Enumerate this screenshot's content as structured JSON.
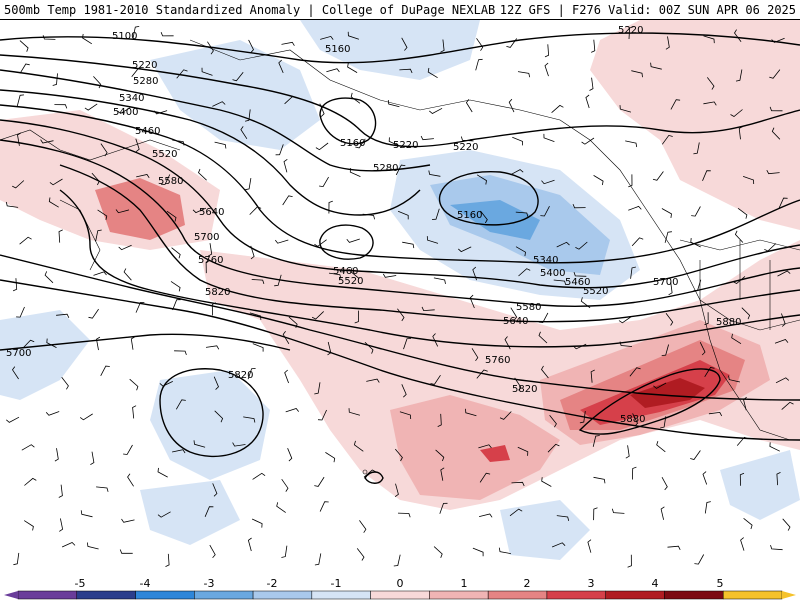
{
  "header": {
    "left": "500mb Temp 1981-2010 Standardized Anomaly | College of DuPage NEXLAB",
    "right": "12Z GFS | F276 Valid: 00Z SUN APR 06 2025"
  },
  "colors": {
    "cold": [
      "#6a3d9a",
      "#2b3e8c",
      "#2e86d9",
      "#6aa8e0",
      "#a9c9ec",
      "#d6e4f5"
    ],
    "warm": [
      "#f7d9d9",
      "#f0b4b4",
      "#e58484",
      "#d6404a",
      "#b01c22",
      "#7c0a12",
      "#f5c22b"
    ],
    "contour": "#000000",
    "barb": "#000000",
    "coast": "#000000"
  },
  "contour_labels": [
    {
      "text": "5100"
    },
    {
      "text": "5160"
    },
    {
      "text": "5220"
    },
    {
      "text": "5280"
    },
    {
      "text": "5340"
    },
    {
      "text": "5400"
    },
    {
      "text": "5460"
    },
    {
      "text": "5520"
    },
    {
      "text": "5580"
    },
    {
      "text": "5640"
    },
    {
      "text": "5700"
    },
    {
      "text": "5760"
    },
    {
      "text": "5820"
    },
    {
      "text": "5160"
    },
    {
      "text": "5220"
    },
    {
      "text": "5220"
    },
    {
      "text": "5280"
    },
    {
      "text": "5160"
    },
    {
      "text": "5340"
    },
    {
      "text": "5400"
    },
    {
      "text": "5460"
    },
    {
      "text": "5520"
    },
    {
      "text": "5460"
    },
    {
      "text": "5520"
    },
    {
      "text": "5580"
    },
    {
      "text": "5640"
    },
    {
      "text": "5760"
    },
    {
      "text": "5820"
    },
    {
      "text": "5700"
    },
    {
      "text": "5880"
    },
    {
      "text": "5880"
    },
    {
      "text": "5820"
    },
    {
      "text": "5700"
    },
    {
      "text": "5220"
    }
  ],
  "legend": {
    "ticks": [
      "-5",
      "-4",
      "-3",
      "-2",
      "-1",
      "0",
      "1",
      "2",
      "3",
      "4",
      "5"
    ]
  }
}
